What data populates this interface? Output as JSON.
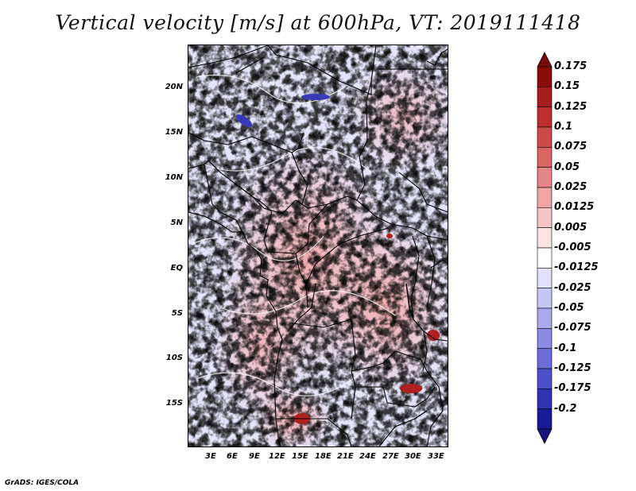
{
  "title": "Vertical velocity [m/s] at 600hPa, VT: 2019111418",
  "credit": "GrADS: IGES/COLA",
  "map": {
    "lat_labels": [
      "20N",
      "15N",
      "10N",
      "5N",
      "EQ",
      "5S",
      "10S",
      "15S"
    ],
    "lon_labels": [
      "3E",
      "6E",
      "9E",
      "12E",
      "15E",
      "18E",
      "21E",
      "24E",
      "27E",
      "30E",
      "33E"
    ]
  },
  "colorbar": {
    "labels": [
      "0.175",
      "0.15",
      "0.125",
      "0.1",
      "0.075",
      "0.05",
      "0.025",
      "0.0125",
      "0.005",
      "-0.005",
      "-0.0125",
      "-0.025",
      "-0.05",
      "-0.075",
      "-0.1",
      "-0.125",
      "-0.175",
      "-0.2"
    ],
    "colors": [
      "#8c0c0c",
      "#a51d1d",
      "#bb2f2f",
      "#cd4a4a",
      "#dc6565",
      "#e68585",
      "#f0a4a4",
      "#f7c5c5",
      "#fce3e3",
      "#ffffff",
      "#e2e2fb",
      "#c7c7f5",
      "#a9a9ee",
      "#8b8be5",
      "#6d6dda",
      "#4f4fcc",
      "#3232b5",
      "#1a1a96"
    ],
    "tip_top_color": "#7a0a0a",
    "tip_bottom_color": "#14147f"
  }
}
